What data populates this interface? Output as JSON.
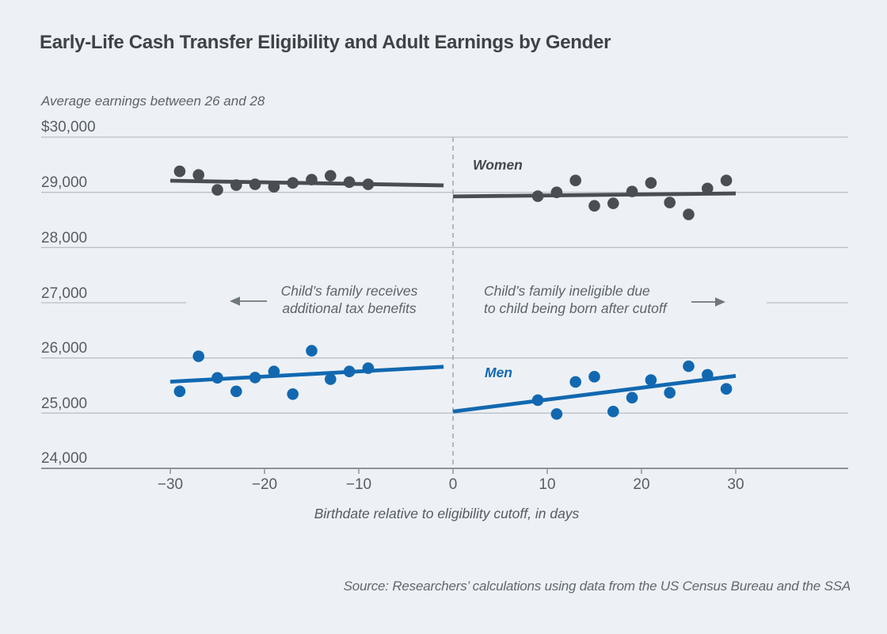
{
  "chart_data": {
    "type": "scatter",
    "title": "Early-Life Cash Transfer Eligibility and Adult Earnings by Gender",
    "ylabel": "Average earnings between 26 and 28",
    "xlabel": "Birthdate relative to eligibility cutoff, in days",
    "ylim": [
      24000,
      30000
    ],
    "xlim": [
      -44,
      42
    ],
    "grid": true,
    "cutoff_x": 0,
    "cutoff_line_style": "dashed",
    "y_ticks": [
      {
        "label": "$30,000",
        "value": 30000
      },
      {
        "label": "29,000",
        "value": 29000
      },
      {
        "label": "28,000",
        "value": 28000
      },
      {
        "label": "27,000",
        "value": 27000
      },
      {
        "label": "26,000",
        "value": 26000
      },
      {
        "label": "25,000",
        "value": 25000
      },
      {
        "label": "24,000",
        "value": 24000
      }
    ],
    "x_ticks": [
      {
        "label": "−30",
        "value": -30
      },
      {
        "label": "−20",
        "value": -20
      },
      {
        "label": "−10",
        "value": -10
      },
      {
        "label": "0",
        "value": 0
      },
      {
        "label": "10",
        "value": 10
      },
      {
        "label": "20",
        "value": 20
      },
      {
        "label": "30",
        "value": 30
      }
    ],
    "series": [
      {
        "name": "Women",
        "segment": "left-of-cutoff",
        "color": "#4a4e53",
        "days": [
          -29,
          -27,
          -25,
          -23,
          -21,
          -19,
          -17,
          -15,
          -13,
          -11,
          -9
        ],
        "values": [
          29380,
          29315,
          29045,
          29130,
          29145,
          29100,
          29170,
          29230,
          29300,
          29185,
          29145
        ],
        "fit": {
          "x": [
            -30,
            -1
          ],
          "y": [
            29210,
            29125
          ]
        }
      },
      {
        "name": "Women",
        "segment": "right-of-cutoff",
        "color": "#4a4e53",
        "days": [
          9,
          11,
          13,
          15,
          17,
          19,
          21,
          23,
          25,
          27,
          29
        ],
        "values": [
          28930,
          29000,
          29215,
          28755,
          28800,
          29015,
          29170,
          28815,
          28600,
          29070,
          29215
        ],
        "fit": {
          "x": [
            0,
            30
          ],
          "y": [
            28925,
            28980
          ]
        }
      },
      {
        "name": "Men",
        "segment": "left-of-cutoff",
        "color": "#1268b0",
        "days": [
          -29,
          -27,
          -25,
          -23,
          -21,
          -19,
          -17,
          -15,
          -13,
          -11,
          -9
        ],
        "values": [
          25395,
          26030,
          25640,
          25395,
          25645,
          25755,
          25345,
          26130,
          25615,
          25755,
          25815
        ],
        "fit": {
          "x": [
            -30,
            -1
          ],
          "y": [
            25570,
            25840
          ]
        }
      },
      {
        "name": "Men",
        "segment": "right-of-cutoff",
        "color": "#1268b0",
        "days": [
          9,
          11,
          13,
          15,
          17,
          19,
          21,
          23,
          25,
          27,
          29
        ],
        "values": [
          25235,
          24985,
          25565,
          25660,
          25030,
          25280,
          25600,
          25370,
          25850,
          25695,
          25440
        ],
        "fit": {
          "x": [
            0,
            30
          ],
          "y": [
            25030,
            25675
          ]
        }
      }
    ],
    "annotations": {
      "left": {
        "line1": "Child’s family receives",
        "line2": "additional tax benefits",
        "arrow": "arrow-left-icon"
      },
      "right": {
        "line1": "Child’s family ineligible due",
        "line2": "to child being born after cutoff",
        "arrow": "arrow-right-icon"
      }
    },
    "legend_position": "inline-labels",
    "colors": {
      "background": "#edf1f6",
      "gridline": "#b9c0c7",
      "axis": "#8d949b",
      "cutoff": "#a4abb2",
      "women": "#4a4e53",
      "men": "#1268b0",
      "arrow": "#70777d"
    }
  },
  "source_note": "Source: Researchers’ calculations using data from the US Census Bureau and the SSA"
}
